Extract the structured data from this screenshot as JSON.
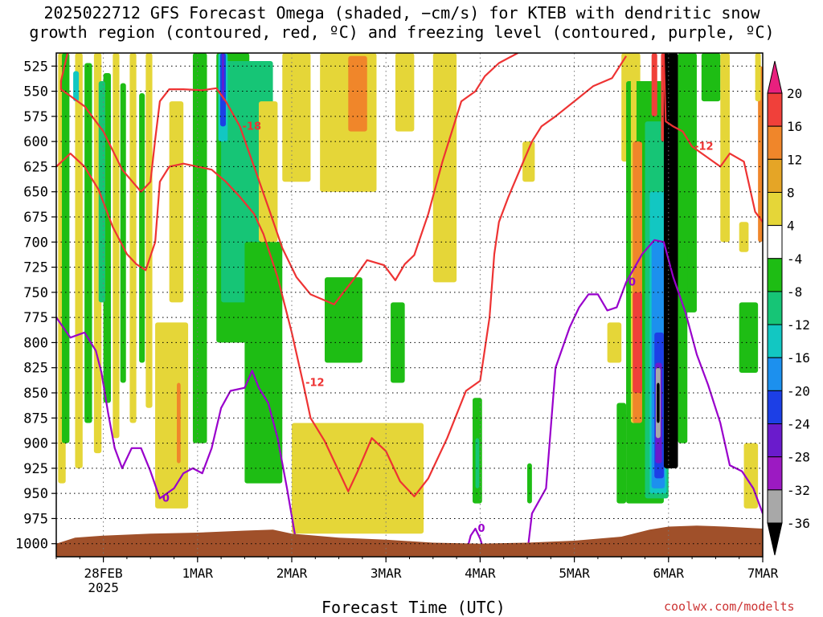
{
  "title": {
    "line1": "2025022712 GFS Forecast Omega (shaded, −cm/s) for KTEB with dendritic snow",
    "line2": "growth region (contoured, red, ºC) and freezing level (contoured, purple, ºC)"
  },
  "credit": "coolwx.com/modelts",
  "chart_data": {
    "type": "heatmap",
    "xlabel": "Forecast Time (UTC)",
    "ylabel": "",
    "x_ticks": [
      "28FEB",
      "1MAR",
      "2MAR",
      "3MAR",
      "4MAR",
      "5MAR",
      "6MAR",
      "7MAR"
    ],
    "x_year_label": "2025",
    "x_range_days": [
      -0.5,
      7.0
    ],
    "y_ticks": [
      525,
      550,
      575,
      600,
      625,
      650,
      675,
      700,
      725,
      750,
      775,
      800,
      825,
      850,
      875,
      900,
      925,
      950,
      975,
      1000
    ],
    "y_range_hPa": [
      512,
      1013
    ],
    "grid": true,
    "colorbar": {
      "labels": [
        "20",
        "16",
        "12",
        "8",
        "4",
        "-4",
        "-8",
        "-12",
        "-16",
        "-20",
        "-24",
        "-28",
        "-32",
        "-36"
      ],
      "bins": [
        {
          "range": ">20",
          "color": "#e8207e"
        },
        {
          "range": "16 to 20",
          "color": "#f0403a"
        },
        {
          "range": "12 to 16",
          "color": "#f0862a"
        },
        {
          "range": "8 to 12",
          "color": "#e5a526"
        },
        {
          "range": "4 to 8",
          "color": "#e5d638"
        },
        {
          "range": "-4 to 4",
          "color": "#ffffff"
        },
        {
          "range": "-8 to -4",
          "color": "#1ebd14"
        },
        {
          "range": "-12 to -8",
          "color": "#16c576"
        },
        {
          "range": "-16 to -12",
          "color": "#12c7c2"
        },
        {
          "range": "-20 to -16",
          "color": "#1c90ee"
        },
        {
          "range": "-24 to -20",
          "color": "#1c3fe6"
        },
        {
          "range": "-28 to -24",
          "color": "#6a1bcc"
        },
        {
          "range": "-32 to -28",
          "color": "#9c1ac2"
        },
        {
          "range": "-36 to -32",
          "color": "#a8a8a8"
        },
        {
          "range": "<-36",
          "color": "#000000"
        }
      ]
    },
    "series": [
      {
        "name": "dendritic snow growth region",
        "color": "#ee3333",
        "contours": [
          {
            "level": -12,
            "points": [
              [
                -0.5,
                625
              ],
              [
                -0.35,
                612
              ],
              [
                -0.2,
                625
              ],
              [
                -0.05,
                648
              ],
              [
                0.1,
                685
              ],
              [
                0.25,
                712
              ],
              [
                0.35,
                722
              ],
              [
                0.45,
                728
              ],
              [
                0.55,
                700
              ],
              [
                0.6,
                640
              ],
              [
                0.7,
                625
              ],
              [
                0.85,
                622
              ],
              [
                1.0,
                625
              ],
              [
                1.15,
                628
              ],
              [
                1.3,
                640
              ],
              [
                1.45,
                655
              ],
              [
                1.6,
                672
              ],
              [
                1.7,
                692
              ],
              [
                1.85,
                735
              ],
              [
                2.0,
                790
              ],
              [
                2.12,
                840
              ],
              [
                2.2,
                875
              ],
              [
                2.35,
                898
              ],
              [
                2.5,
                928
              ],
              [
                2.6,
                948
              ],
              [
                2.7,
                928
              ],
              [
                2.85,
                895
              ],
              [
                3.0,
                908
              ],
              [
                3.15,
                938
              ],
              [
                3.3,
                953
              ],
              [
                3.45,
                935
              ],
              [
                3.65,
                895
              ],
              [
                3.85,
                848
              ],
              [
                4.0,
                838
              ],
              [
                4.1,
                775
              ],
              [
                4.15,
                712
              ],
              [
                4.2,
                680
              ],
              [
                4.3,
                655
              ],
              [
                4.45,
                622
              ],
              [
                4.55,
                600
              ],
              [
                4.65,
                585
              ],
              [
                4.8,
                575
              ],
              [
                5.0,
                560
              ],
              [
                5.2,
                545
              ],
              [
                5.4,
                537
              ],
              [
                5.55,
                515
              ]
            ]
          },
          {
            "level": -18,
            "points": [
              [
                -0.38,
                512
              ],
              [
                -0.45,
                540
              ],
              [
                -0.45,
                548
              ],
              [
                -0.2,
                565
              ],
              [
                0.0,
                590
              ],
              [
                0.2,
                628
              ],
              [
                0.4,
                650
              ],
              [
                0.5,
                640
              ],
              [
                0.55,
                598
              ],
              [
                0.6,
                560
              ],
              [
                0.7,
                548
              ],
              [
                0.85,
                548
              ],
              [
                1.05,
                549
              ],
              [
                1.2,
                547
              ],
              [
                1.3,
                560
              ],
              [
                1.45,
                585
              ],
              [
                1.6,
                625
              ],
              [
                1.75,
                665
              ],
              [
                1.9,
                706
              ],
              [
                2.05,
                735
              ],
              [
                2.2,
                752
              ],
              [
                2.45,
                762
              ],
              [
                2.65,
                738
              ],
              [
                2.8,
                718
              ],
              [
                2.98,
                723
              ],
              [
                3.1,
                738
              ],
              [
                3.2,
                722
              ],
              [
                3.3,
                713
              ],
              [
                3.45,
                672
              ],
              [
                3.6,
                620
              ],
              [
                3.8,
                560
              ],
              [
                3.95,
                550
              ],
              [
                4.05,
                535
              ],
              [
                4.2,
                522
              ],
              [
                4.4,
                512
              ]
            ]
          },
          {
            "level": -12,
            "points": [
              [
                5.95,
                512
              ],
              [
                5.97,
                580
              ],
              [
                6.05,
                585
              ],
              [
                6.15,
                590
              ],
              [
                6.25,
                605
              ],
              [
                6.4,
                615
              ],
              [
                6.55,
                625
              ],
              [
                6.65,
                612
              ],
              [
                6.8,
                620
              ],
              [
                6.92,
                670
              ],
              [
                7.0,
                680
              ]
            ]
          }
        ]
      },
      {
        "name": "freezing level",
        "color": "#9900cc",
        "contours": [
          {
            "level": 0,
            "points": [
              [
                -0.5,
                775
              ],
              [
                -0.35,
                795
              ],
              [
                -0.2,
                790
              ],
              [
                -0.08,
                808
              ],
              [
                -0.02,
                830
              ],
              [
                0.05,
                870
              ],
              [
                0.12,
                905
              ],
              [
                0.2,
                925
              ],
              [
                0.3,
                905
              ],
              [
                0.4,
                905
              ],
              [
                0.5,
                928
              ],
              [
                0.6,
                955
              ],
              [
                0.75,
                945
              ],
              [
                0.85,
                930
              ],
              [
                0.95,
                925
              ],
              [
                1.05,
                930
              ],
              [
                1.15,
                905
              ],
              [
                1.25,
                865
              ],
              [
                1.35,
                848
              ],
              [
                1.5,
                845
              ],
              [
                1.58,
                828
              ],
              [
                1.65,
                845
              ],
              [
                1.75,
                860
              ],
              [
                1.85,
                895
              ],
              [
                1.95,
                945
              ],
              [
                2.05,
                1000
              ]
            ]
          },
          {
            "level": 0,
            "points": [
              [
                3.85,
                1010
              ],
              [
                3.9,
                992
              ],
              [
                3.95,
                985
              ],
              [
                4.0,
                995
              ],
              [
                4.05,
                1010
              ]
            ]
          },
          {
            "level": 0,
            "points": [
              [
                4.5,
                1010
              ],
              [
                4.55,
                970
              ],
              [
                4.7,
                945
              ],
              [
                4.8,
                825
              ],
              [
                4.95,
                785
              ],
              [
                5.05,
                765
              ],
              [
                5.15,
                752
              ],
              [
                5.25,
                752
              ],
              [
                5.35,
                768
              ],
              [
                5.45,
                765
              ],
              [
                5.55,
                740
              ],
              [
                5.72,
                712
              ],
              [
                5.85,
                698
              ],
              [
                5.95,
                700
              ],
              [
                6.05,
                735
              ],
              [
                6.18,
                770
              ],
              [
                6.3,
                812
              ],
              [
                6.42,
                842
              ],
              [
                6.55,
                880
              ],
              [
                6.65,
                922
              ],
              [
                6.78,
                928
              ],
              [
                6.9,
                945
              ],
              [
                7.0,
                970
              ]
            ]
          }
        ]
      }
    ],
    "shaded_regions": [
      {
        "label": "4",
        "x_range": [
          -0.5,
          0.5
        ],
        "p_range": [
          512,
          950
        ]
      },
      {
        "label": "-8",
        "x_range": [
          -0.5,
          0.2
        ],
        "p_range": [
          512,
          900
        ]
      },
      {
        "label": "-12",
        "x_range": [
          1.2,
          1.8
        ],
        "p_range": [
          512,
          760
        ]
      },
      {
        "label": "-28",
        "x_range": [
          1.2,
          1.3
        ],
        "p_range": [
          512,
          585
        ]
      },
      {
        "label": "12",
        "x_range": [
          2.6,
          2.8
        ],
        "p_range": [
          515,
          590
        ]
      },
      {
        "label": "4",
        "x_range": [
          2.0,
          3.4
        ],
        "p_range": [
          880,
          990
        ]
      },
      {
        "label": "-36",
        "x_range": [
          5.95,
          6.1
        ],
        "p_range": [
          512,
          925
        ]
      },
      {
        "label": "16",
        "x_range": [
          5.62,
          5.72
        ],
        "p_range": [
          750,
          850
        ]
      },
      {
        "label": "-24",
        "x_range": [
          5.85,
          5.95
        ],
        "p_range": [
          790,
          935
        ]
      },
      {
        "label": "12",
        "x_range": [
          6.95,
          7.0
        ],
        "p_range": [
          525,
          700
        ]
      }
    ],
    "surface_color": "#a0502a"
  }
}
